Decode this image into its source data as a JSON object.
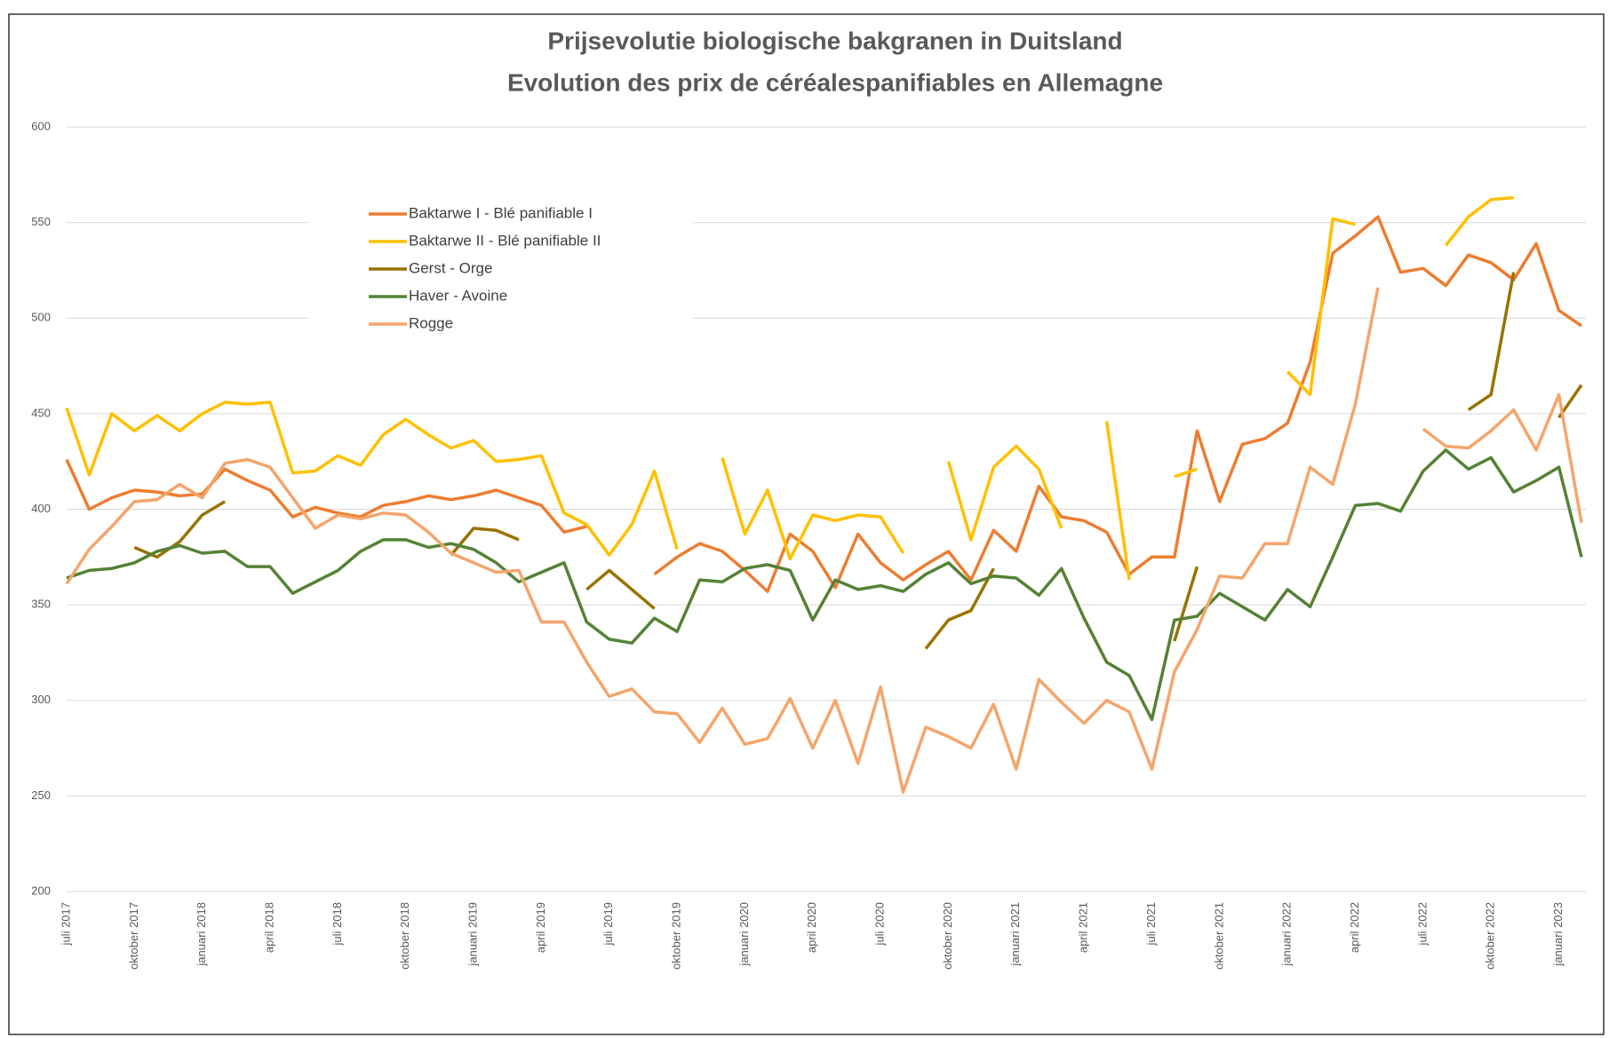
{
  "chart_data": {
    "type": "line",
    "title": "Prijsevolutie biologische bakgranen in Duitsland",
    "subtitle": "Evolution des prix de céréalespanifiables en Allemagne",
    "categories": [
      "juli 2017",
      null,
      null,
      "oktober 2017",
      null,
      null,
      "januari 2018",
      null,
      null,
      "april 2018",
      null,
      null,
      "juli 2018",
      null,
      null,
      "oktober 2018",
      null,
      null,
      "januari 2019",
      null,
      null,
      "april 2019",
      null,
      null,
      "juli 2019",
      null,
      null,
      "oktober 2019",
      null,
      null,
      "januari 2020",
      null,
      null,
      "april 2020",
      null,
      null,
      "juli 2020",
      null,
      null,
      "oktober 2020",
      null,
      null,
      "januari 2021",
      null,
      null,
      "april 2021",
      null,
      null,
      "juli 2021",
      null,
      null,
      "oktober 2021",
      null,
      null,
      "januari 2022",
      null,
      null,
      "april 2022",
      null,
      null,
      "juli 2022",
      null,
      null,
      "oktober 2022",
      null,
      null,
      "januari 2023",
      null
    ],
    "series": [
      {
        "name": "Baktarwe I - Blé panifiable I",
        "color": "#ED7D31",
        "values": [
          426,
          400,
          406,
          410,
          409,
          407,
          408,
          421,
          415,
          410,
          396,
          401,
          398,
          396,
          402,
          404,
          407,
          405,
          407,
          410,
          406,
          402,
          388,
          391,
          null,
          null,
          366,
          375,
          382,
          378,
          368,
          357,
          387,
          378,
          359,
          387,
          372,
          363,
          371,
          378,
          363,
          389,
          378,
          412,
          396,
          394,
          388,
          366,
          375,
          375,
          441,
          404,
          434,
          437,
          445,
          477,
          534,
          543,
          553,
          524,
          526,
          517,
          533,
          529,
          520,
          539,
          504,
          496
        ]
      },
      {
        "name": "Baktarwe II - Blé panifiable II",
        "color": "#FFC000",
        "values": [
          453,
          418,
          450,
          441,
          449,
          441,
          450,
          456,
          455,
          456,
          419,
          420,
          428,
          423,
          439,
          447,
          439,
          432,
          436,
          425,
          426,
          428,
          398,
          392,
          376,
          392,
          420,
          379,
          null,
          427,
          387,
          410,
          374,
          397,
          394,
          397,
          396,
          377,
          null,
          425,
          384,
          422,
          433,
          421,
          390,
          null,
          446,
          363,
          null,
          417,
          421,
          null,
          null,
          null,
          472,
          460,
          552,
          549,
          null,
          null,
          null,
          538,
          553,
          562,
          563,
          null,
          null,
          null
        ]
      },
      {
        "name": "Gerst - Orge",
        "color": "#997300",
        "values": [
          null,
          null,
          null,
          380,
          375,
          383,
          397,
          404,
          null,
          null,
          null,
          null,
          null,
          null,
          null,
          null,
          null,
          376,
          390,
          389,
          384,
          null,
          null,
          358,
          368,
          358,
          348,
          null,
          null,
          null,
          null,
          null,
          null,
          null,
          null,
          null,
          null,
          null,
          327,
          342,
          347,
          369,
          null,
          null,
          null,
          null,
          null,
          null,
          null,
          331,
          370,
          null,
          null,
          null,
          null,
          null,
          null,
          null,
          null,
          null,
          null,
          null,
          452,
          460,
          524,
          null,
          448,
          465
        ]
      },
      {
        "name": "Haver - Avoine",
        "color": "#548235",
        "values": [
          364,
          368,
          369,
          372,
          378,
          381,
          377,
          378,
          370,
          370,
          356,
          362,
          368,
          378,
          384,
          384,
          380,
          382,
          379,
          372,
          362,
          367,
          372,
          341,
          332,
          330,
          343,
          336,
          363,
          362,
          369,
          371,
          368,
          342,
          363,
          358,
          360,
          357,
          366,
          372,
          361,
          365,
          364,
          355,
          369,
          343,
          320,
          313,
          290,
          342,
          344,
          356,
          349,
          342,
          358,
          349,
          375,
          402,
          403,
          399,
          420,
          431,
          421,
          427,
          409,
          415,
          422,
          375
        ]
      },
      {
        "name": "Rogge",
        "color": "#F4A56B",
        "values": [
          361,
          379,
          391,
          404,
          405,
          413,
          406,
          424,
          426,
          422,
          406,
          390,
          397,
          395,
          398,
          397,
          388,
          377,
          372,
          367,
          368,
          341,
          341,
          320,
          302,
          306,
          294,
          293,
          278,
          296,
          277,
          280,
          301,
          275,
          300,
          267,
          307,
          252,
          286,
          281,
          275,
          298,
          264,
          311,
          299,
          288,
          300,
          294,
          264,
          315,
          337,
          365,
          364,
          382,
          382,
          422,
          413,
          455,
          516,
          null,
          442,
          433,
          432,
          441,
          452,
          431,
          460,
          393
        ]
      }
    ],
    "ylim": [
      200,
      600
    ],
    "yticks": [
      200,
      250,
      300,
      350,
      400,
      450,
      500,
      550,
      600
    ],
    "grid": true
  }
}
